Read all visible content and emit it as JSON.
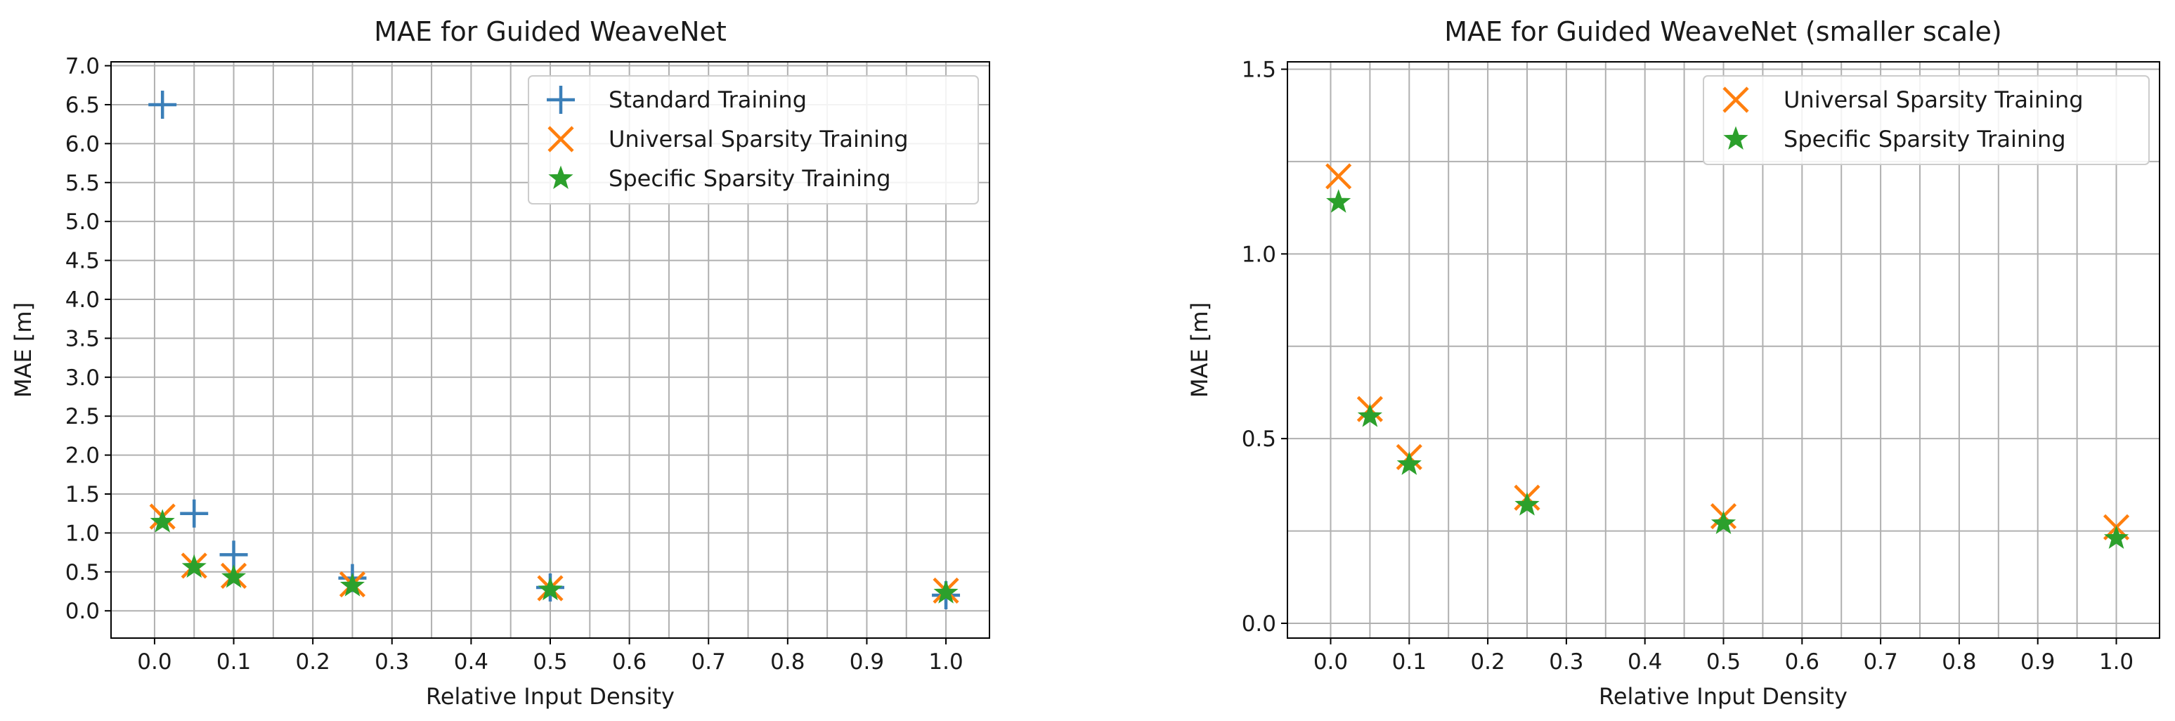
{
  "colors": {
    "standard": "#3b7fb8",
    "universal": "#ff7f0e",
    "specific": "#2ca02c",
    "grid": "#b0b0b0",
    "axis": "#000000"
  },
  "chart_data": [
    {
      "type": "scatter",
      "title": "MAE for Guided WeaveNet",
      "xlabel": "Relative Input Density",
      "ylabel": "MAE [m]",
      "xlim": [
        -0.055,
        1.055
      ],
      "ylim": [
        -0.35,
        7.05
      ],
      "xticks": [
        0.0,
        0.1,
        0.2,
        0.3,
        0.4,
        0.5,
        0.6,
        0.7,
        0.8,
        0.9,
        1.0
      ],
      "xtick_labels": [
        "0.0",
        "0.1",
        "0.2",
        "0.3",
        "0.4",
        "0.5",
        "0.6",
        "0.7",
        "0.8",
        "0.9",
        "1.0"
      ],
      "xgrid": [
        0.0,
        0.05,
        0.1,
        0.15,
        0.2,
        0.25,
        0.3,
        0.35,
        0.4,
        0.45,
        0.5,
        0.55,
        0.6,
        0.65,
        0.7,
        0.75,
        0.8,
        0.85,
        0.9,
        0.95,
        1.0
      ],
      "yticks": [
        0.0,
        0.5,
        1.0,
        1.5,
        2.0,
        2.5,
        3.0,
        3.5,
        4.0,
        4.5,
        5.0,
        5.5,
        6.0,
        6.5,
        7.0
      ],
      "ytick_labels": [
        "0.0",
        "0.5",
        "1.0",
        "1.5",
        "2.0",
        "2.5",
        "3.0",
        "3.5",
        "4.0",
        "4.5",
        "5.0",
        "5.5",
        "6.0",
        "6.5",
        "7.0"
      ],
      "grid": true,
      "legend_position": "upper right",
      "series": [
        {
          "name": "Standard Training",
          "marker": "plus",
          "color_key": "standard",
          "x": [
            0.01,
            0.05,
            0.1,
            0.25,
            0.5,
            1.0
          ],
          "y": [
            6.5,
            1.25,
            0.72,
            0.42,
            0.3,
            0.2
          ]
        },
        {
          "name": "Universal Sparsity Training",
          "marker": "x",
          "color_key": "universal",
          "x": [
            0.01,
            0.05,
            0.1,
            0.25,
            0.5,
            1.0
          ],
          "y": [
            1.21,
            0.58,
            0.45,
            0.34,
            0.29,
            0.26
          ]
        },
        {
          "name": "Specific Sparsity Training",
          "marker": "star",
          "color_key": "specific",
          "x": [
            0.01,
            0.05,
            0.1,
            0.25,
            0.5,
            1.0
          ],
          "y": [
            1.14,
            0.56,
            0.43,
            0.32,
            0.27,
            0.23
          ]
        }
      ]
    },
    {
      "type": "scatter",
      "title": "MAE for Guided WeaveNet (smaller scale)",
      "xlabel": "Relative Input Density",
      "ylabel": "MAE [m]",
      "xlim": [
        -0.055,
        1.055
      ],
      "ylim": [
        -0.04,
        1.52
      ],
      "xticks": [
        0.0,
        0.1,
        0.2,
        0.3,
        0.4,
        0.5,
        0.6,
        0.7,
        0.8,
        0.9,
        1.0
      ],
      "xtick_labels": [
        "0.0",
        "0.1",
        "0.2",
        "0.3",
        "0.4",
        "0.5",
        "0.6",
        "0.7",
        "0.8",
        "0.9",
        "1.0"
      ],
      "xgrid": [
        0.0,
        0.05,
        0.1,
        0.15,
        0.2,
        0.25,
        0.3,
        0.35,
        0.4,
        0.45,
        0.5,
        0.55,
        0.6,
        0.65,
        0.7,
        0.75,
        0.8,
        0.85,
        0.9,
        0.95,
        1.0
      ],
      "yticks": [
        0.0,
        0.5,
        1.0,
        1.5
      ],
      "ytick_labels": [
        "0.0",
        "0.5",
        "1.0",
        "1.5"
      ],
      "ygrid": [
        0.0,
        0.25,
        0.5,
        0.75,
        1.0,
        1.25,
        1.5
      ],
      "grid": true,
      "legend_position": "upper right",
      "series": [
        {
          "name": "Universal Sparsity Training",
          "marker": "x",
          "color_key": "universal",
          "x": [
            0.01,
            0.05,
            0.1,
            0.25,
            0.5,
            1.0
          ],
          "y": [
            1.21,
            0.58,
            0.45,
            0.34,
            0.29,
            0.26
          ]
        },
        {
          "name": "Specific Sparsity Training",
          "marker": "star",
          "color_key": "specific",
          "x": [
            0.01,
            0.05,
            0.1,
            0.25,
            0.5,
            1.0
          ],
          "y": [
            1.14,
            0.56,
            0.43,
            0.32,
            0.27,
            0.23
          ]
        }
      ]
    }
  ]
}
